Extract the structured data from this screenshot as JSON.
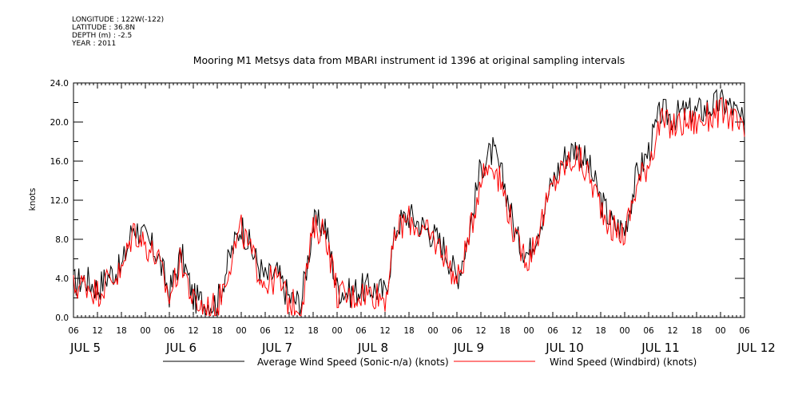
{
  "meta": {
    "longitude": "LONGITUDE : 122W(-122)",
    "latitude": "LATITUDE : 36.8N",
    "depth": "DEPTH (m) : -2.5",
    "year": "YEAR : 2011"
  },
  "chart_data": {
    "type": "line",
    "title": "Mooring M1 Metsys data from MBARI instrument id 1396 at original sampling intervals",
    "ylabel": "knots",
    "xlabel": "",
    "ylim": [
      0,
      24
    ],
    "yticks": [
      "0.0",
      "4.0",
      "8.0",
      "12.0",
      "16.0",
      "20.0",
      "24.0"
    ],
    "xlim_hours": [
      0,
      168
    ],
    "hour_ticks": [
      "06",
      "12",
      "18",
      "00",
      "06",
      "12",
      "18",
      "00",
      "06",
      "12",
      "18",
      "00",
      "06",
      "12",
      "18",
      "00",
      "06",
      "12",
      "18",
      "00",
      "06",
      "12",
      "18",
      "00",
      "06",
      "12",
      "18",
      "00",
      "06"
    ],
    "day_labels": [
      "JUL  5",
      "JUL  6",
      "JUL  7",
      "JUL  8",
      "JUL  9",
      "JUL 10",
      "JUL 11",
      "JUL 12"
    ],
    "grid": false,
    "legend_position": "bottom",
    "x_hours_since_jul5_06": [
      0,
      3,
      6,
      9,
      12,
      15,
      18,
      21,
      24,
      27,
      30,
      33,
      36,
      39,
      42,
      45,
      48,
      51,
      54,
      57,
      60,
      63,
      66,
      69,
      72,
      75,
      78,
      81,
      84,
      87,
      90,
      93,
      96,
      99,
      102,
      105,
      108,
      111,
      114,
      117,
      120,
      123,
      126,
      129,
      132,
      135,
      138,
      141,
      144,
      147,
      150,
      153,
      156,
      159,
      162,
      165,
      168
    ],
    "series": [
      {
        "name": "Average Wind Speed (Sonic-n/a) (knots)",
        "color": "#000000",
        "values": [
          3.5,
          4.0,
          3.0,
          4.5,
          5.0,
          9.5,
          8.0,
          6.5,
          2.5,
          6.5,
          2.0,
          1.5,
          1.5,
          6.0,
          9.5,
          6.5,
          4.0,
          4.5,
          2.0,
          1.5,
          9.5,
          9.5,
          3.0,
          2.5,
          3.0,
          3.0,
          2.5,
          9.5,
          10.5,
          9.5,
          8.5,
          7.0,
          4.0,
          8.5,
          15.5,
          17.0,
          13.5,
          8.0,
          6.5,
          10.0,
          14.0,
          16.5,
          17.5,
          15.5,
          12.0,
          9.5,
          9.0,
          14.5,
          17.0,
          21.0,
          20.5,
          21.0,
          21.0,
          21.5,
          22.0,
          21.5,
          19.5
        ]
      },
      {
        "name": "Wind Speed (Windbird) (knots)",
        "color": "#ff0000",
        "values": [
          3.0,
          3.5,
          2.5,
          4.0,
          4.5,
          9.0,
          7.5,
          6.0,
          2.0,
          6.0,
          1.5,
          1.0,
          1.0,
          5.5,
          9.0,
          6.0,
          3.5,
          4.0,
          1.5,
          1.0,
          9.0,
          9.0,
          2.5,
          2.0,
          2.5,
          2.5,
          2.0,
          9.0,
          10.0,
          9.0,
          8.0,
          6.5,
          3.5,
          8.0,
          14.5,
          16.0,
          12.5,
          7.5,
          6.0,
          9.5,
          13.5,
          15.5,
          16.5,
          14.5,
          11.5,
          9.0,
          8.5,
          13.5,
          16.0,
          20.0,
          19.5,
          20.0,
          20.0,
          20.5,
          21.0,
          20.5,
          18.5
        ]
      }
    ]
  }
}
